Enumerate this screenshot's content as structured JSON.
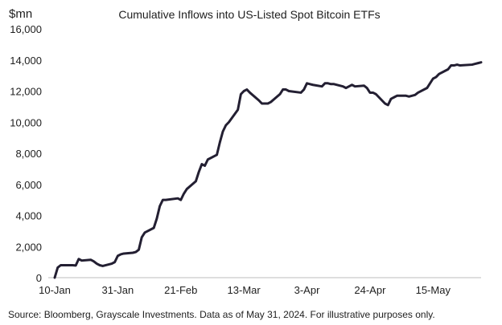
{
  "chart_data": {
    "type": "line",
    "title": "Cumulative Inflows into US-Listed Spot Bitcoin ETFs",
    "ylabel": "$mn",
    "xlabel": "",
    "ylim": [
      0,
      16000
    ],
    "yticks": [
      0,
      2000,
      4000,
      6000,
      8000,
      10000,
      12000,
      14000,
      16000
    ],
    "ytick_labels": [
      "0",
      "2,000",
      "4,000",
      "6,000",
      "8,000",
      "10,000",
      "12,000",
      "14,000",
      "16,000"
    ],
    "xlim": [
      "2024-01-10",
      "2024-05-31"
    ],
    "xticks": [
      "2024-01-10",
      "2024-01-31",
      "2024-02-21",
      "2024-03-13",
      "2024-04-03",
      "2024-04-24",
      "2024-05-15"
    ],
    "xtick_labels": [
      "10-Jan",
      "31-Jan",
      "21-Feb",
      "13-Mar",
      "3-Apr",
      "24-Apr",
      "15-May"
    ],
    "grid": false,
    "legend": "none",
    "color": "#231f32",
    "series": [
      {
        "x": [
          "2024-01-10",
          "2024-01-11",
          "2024-01-12",
          "2024-01-16",
          "2024-01-17",
          "2024-01-18",
          "2024-01-19",
          "2024-01-22",
          "2024-01-23",
          "2024-01-24",
          "2024-01-25",
          "2024-01-26",
          "2024-01-29",
          "2024-01-30",
          "2024-01-31",
          "2024-02-01",
          "2024-02-02",
          "2024-02-05",
          "2024-02-06",
          "2024-02-07",
          "2024-02-08",
          "2024-02-09",
          "2024-02-12",
          "2024-02-13",
          "2024-02-14",
          "2024-02-15",
          "2024-02-16",
          "2024-02-20",
          "2024-02-21",
          "2024-02-22",
          "2024-02-23",
          "2024-02-26",
          "2024-02-27",
          "2024-02-28",
          "2024-02-29",
          "2024-03-01",
          "2024-03-04",
          "2024-03-05",
          "2024-03-06",
          "2024-03-07",
          "2024-03-08",
          "2024-03-11",
          "2024-03-12",
          "2024-03-13",
          "2024-03-14",
          "2024-03-15",
          "2024-03-18",
          "2024-03-19",
          "2024-03-20",
          "2024-03-21",
          "2024-03-22",
          "2024-03-25",
          "2024-03-26",
          "2024-03-27",
          "2024-03-28",
          "2024-04-01",
          "2024-04-02",
          "2024-04-03",
          "2024-04-04",
          "2024-04-05",
          "2024-04-08",
          "2024-04-09",
          "2024-04-10",
          "2024-04-11",
          "2024-04-12",
          "2024-04-15",
          "2024-04-16",
          "2024-04-17",
          "2024-04-18",
          "2024-04-19",
          "2024-04-22",
          "2024-04-23",
          "2024-04-24",
          "2024-04-25",
          "2024-04-26",
          "2024-04-29",
          "2024-04-30",
          "2024-05-01",
          "2024-05-02",
          "2024-05-03",
          "2024-05-06",
          "2024-05-07",
          "2024-05-08",
          "2024-05-09",
          "2024-05-10",
          "2024-05-13",
          "2024-05-14",
          "2024-05-15",
          "2024-05-16",
          "2024-05-17",
          "2024-05-20",
          "2024-05-21",
          "2024-05-22",
          "2024-05-23",
          "2024-05-24",
          "2024-05-28",
          "2024-05-29",
          "2024-05-30",
          "2024-05-31"
        ],
        "values": [
          0,
          650,
          800,
          800,
          780,
          1200,
          1100,
          1150,
          1050,
          900,
          800,
          750,
          900,
          1000,
          1400,
          1500,
          1550,
          1600,
          1650,
          1800,
          2600,
          2900,
          3200,
          3800,
          4600,
          5000,
          5000,
          5100,
          5000,
          5400,
          5700,
          6200,
          6800,
          7300,
          7200,
          7600,
          7900,
          8700,
          9400,
          9800,
          10000,
          10800,
          11800,
          12000,
          12100,
          11900,
          11400,
          11200,
          11200,
          11200,
          11300,
          11800,
          12100,
          12100,
          12000,
          11900,
          12100,
          12500,
          12450,
          12400,
          12300,
          12500,
          12500,
          12450,
          12450,
          12300,
          12200,
          12300,
          12400,
          12300,
          12350,
          12200,
          11900,
          11900,
          11800,
          11200,
          11100,
          11500,
          11600,
          11700,
          11700,
          11650,
          11700,
          11750,
          11900,
          12200,
          12500,
          12800,
          12900,
          13100,
          13400,
          13650,
          13650,
          13700,
          13650,
          13700,
          13750,
          13800,
          13850
        ]
      }
    ]
  },
  "source_note": "Source: Bloomberg, Grayscale Investments. Data as of May 31, 2024. For illustrative purposes only."
}
